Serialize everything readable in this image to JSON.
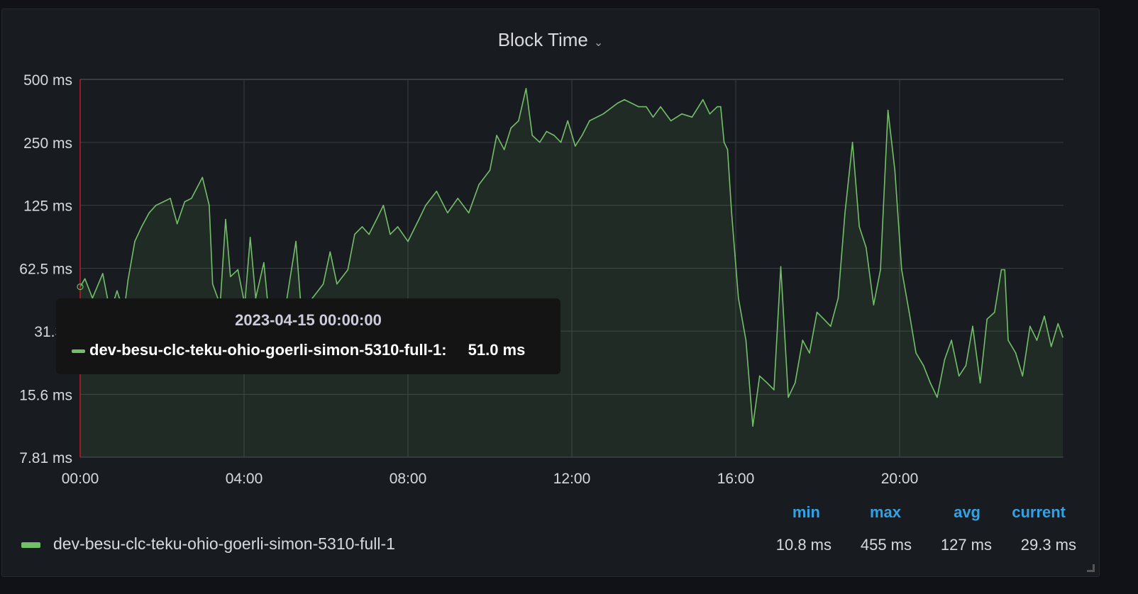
{
  "panel": {
    "title": "Block Time",
    "title_icon": "chevron-down-icon"
  },
  "colors": {
    "series": "#73bf69",
    "stat_header": "#33a2e5",
    "background": "#181b1f",
    "cursor_line": "#c4162a"
  },
  "tooltip": {
    "time": "2023-04-15 00:00:00",
    "series": "dev-besu-clc-teku-ohio-goerli-simon-5310-full-1:",
    "value": "51.0 ms"
  },
  "legend": {
    "series": "dev-besu-clc-teku-ohio-goerli-simon-5310-full-1",
    "headers": {
      "min": "min",
      "max": "max",
      "avg": "avg",
      "current": "current"
    },
    "values": {
      "min": "10.8 ms",
      "max": "455 ms",
      "avg": "127 ms",
      "current": "29.3 ms"
    }
  },
  "chart_data": {
    "type": "area",
    "title": "Block Time",
    "y_scale": "log2",
    "ylim": [
      7.81,
      500
    ],
    "y_ticks": [
      500,
      250,
      125,
      62.5,
      31.3,
      15.6,
      7.81
    ],
    "y_tick_labels": [
      "500 ms",
      "250 ms",
      "125 ms",
      "62.5 ms",
      "31.3 r",
      "15.6 ms",
      "7.81 ms"
    ],
    "x_ticks": [
      "00:00",
      "04:00",
      "08:00",
      "12:00",
      "16:00",
      "20:00"
    ],
    "xlim": [
      "00:00",
      "24:00"
    ],
    "grid": true,
    "series": [
      {
        "name": "dev-besu-clc-teku-ohio-goerli-simon-5310-full-1",
        "x": [
          "00:00",
          "00:07",
          "00:18",
          "00:33",
          "00:44",
          "00:54",
          "01:04",
          "01:10",
          "01:20",
          "01:30",
          "01:41",
          "01:51",
          "02:02",
          "02:12",
          "02:22",
          "02:33",
          "02:43",
          "02:59",
          "03:09",
          "03:14",
          "03:25",
          "03:33",
          "03:40",
          "03:51",
          "04:01",
          "04:09",
          "04:17",
          "04:29",
          "04:38",
          "04:58",
          "05:16",
          "05:24",
          "05:40",
          "05:56",
          "06:06",
          "06:16",
          "06:32",
          "06:42",
          "06:53",
          "07:03",
          "07:14",
          "07:24",
          "07:34",
          "07:45",
          "08:00",
          "08:16",
          "08:26",
          "08:42",
          "08:58",
          "09:13",
          "09:29",
          "09:44",
          "10:00",
          "10:10",
          "10:21",
          "10:31",
          "10:42",
          "10:53",
          "11:02",
          "11:13",
          "11:23",
          "11:34",
          "11:44",
          "11:54",
          "12:05",
          "12:15",
          "12:26",
          "12:46",
          "13:07",
          "13:17",
          "13:38",
          "13:49",
          "13:59",
          "14:10",
          "14:25",
          "14:41",
          "14:56",
          "15:12",
          "15:22",
          "15:33",
          "15:38",
          "15:43",
          "15:48",
          "15:54",
          "15:59",
          "16:04",
          "16:15",
          "16:25",
          "16:35",
          "16:46",
          "16:56",
          "17:06",
          "17:17",
          "17:27",
          "17:38",
          "17:48",
          "17:59",
          "18:09",
          "18:19",
          "18:30",
          "18:40",
          "18:51",
          "19:01",
          "19:11",
          "19:22",
          "19:32",
          "19:43",
          "19:53",
          "20:03",
          "20:14",
          "20:24",
          "20:35",
          "20:45",
          "20:55",
          "21:06",
          "21:16",
          "21:27",
          "21:37",
          "21:47",
          "21:58",
          "22:08",
          "22:19",
          "22:29",
          "22:34",
          "22:39",
          "22:50",
          "23:00",
          "23:11",
          "23:21",
          "23:32",
          "23:42",
          "23:52",
          "23:59"
        ],
        "values": [
          51.0,
          55.7,
          45,
          59,
          38.5,
          48.8,
          38.5,
          54.8,
          84,
          98.7,
          115,
          125,
          130,
          135,
          102,
          130,
          135,
          170,
          125,
          52.6,
          41.8,
          107,
          57,
          61.5,
          41.8,
          87.8,
          45,
          66.5,
          33,
          35.7,
          84,
          38.5,
          45,
          52.6,
          74.9,
          52.6,
          61.5,
          90.8,
          98.7,
          90.8,
          107,
          125,
          90.8,
          98.7,
          84,
          107,
          125,
          146,
          115,
          135,
          115,
          157,
          184,
          270,
          231,
          293,
          317,
          452,
          270,
          250,
          282,
          270,
          250,
          317,
          240,
          270,
          317,
          342,
          385,
          400,
          370,
          370,
          330,
          370,
          317,
          342,
          330,
          400,
          342,
          370,
          370,
          250,
          231,
          115,
          71.8,
          45,
          28.3,
          11.0,
          19.1,
          17.7,
          16.4,
          63.6,
          15.1,
          17.7,
          28.3,
          24.6,
          38.5,
          35.7,
          33,
          45,
          115,
          250,
          98.7,
          78.5,
          41.8,
          61.5,
          356,
          184,
          61.5,
          38.5,
          24.6,
          21.4,
          17.7,
          15.1,
          22.9,
          28.3,
          19.1,
          21.4,
          33,
          17.7,
          35.7,
          38.5,
          61.5,
          61.5,
          28.3,
          24.6,
          19.1,
          33,
          28.3,
          36.9,
          26.4,
          34,
          29.3
        ]
      }
    ]
  }
}
